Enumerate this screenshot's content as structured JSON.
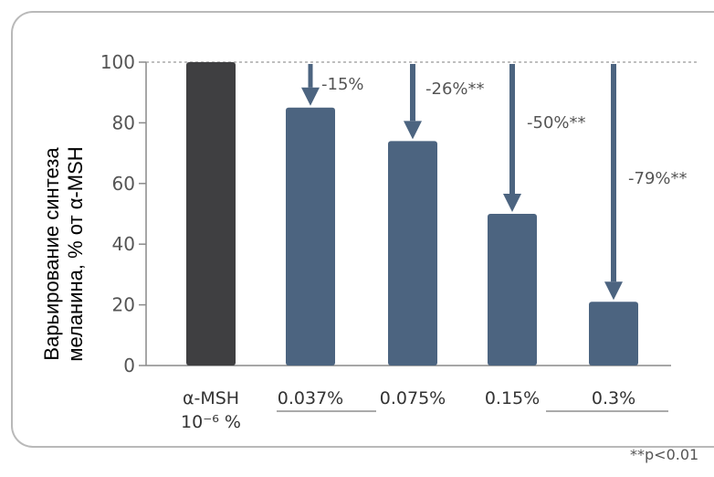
{
  "chart_data": {
    "type": "bar",
    "ylabel_lines": [
      "Варьирование синтеза",
      "меланина, % от α-MSH"
    ],
    "categories": [
      {
        "lines": [
          "α-MSH",
          "10⁻⁶ %"
        ]
      },
      {
        "lines": [
          "0.037%"
        ]
      },
      {
        "lines": [
          "0.075%"
        ]
      },
      {
        "lines": [
          "0.15%"
        ]
      },
      {
        "lines": [
          "0.3%"
        ]
      }
    ],
    "values": [
      100,
      85,
      74,
      50,
      21
    ],
    "arrow_labels": [
      "",
      "-15%",
      "-26%**",
      "-50%**",
      "-79%**"
    ],
    "yticks": [
      0,
      20,
      40,
      60,
      80,
      100
    ],
    "ylim": [
      0,
      100
    ],
    "reference_line": 100,
    "footnote": "**p<0.01",
    "colors": {
      "control_bar": "#3f3f41",
      "treatment_bar": "#4c6480",
      "arrow": "#4c6480",
      "text": "#555555",
      "reference": "#999999"
    }
  }
}
